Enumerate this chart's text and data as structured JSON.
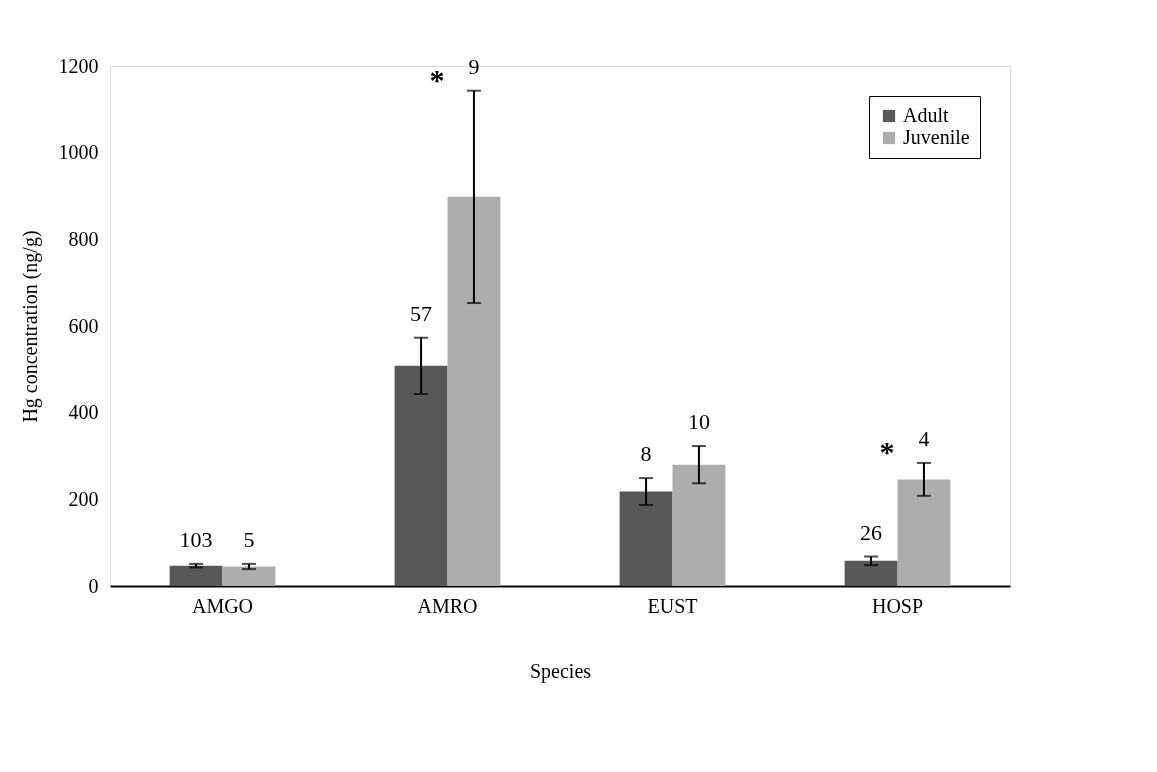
{
  "chart_data": {
    "type": "bar",
    "xlabel": "Species",
    "ylabel": "Hg concentration (ng/g)",
    "categories": [
      "AMGO",
      "AMRO",
      "EUST",
      "HOSP"
    ],
    "series": [
      {
        "name": "Adult",
        "color": "#595758",
        "values": [
          47,
          508,
          218,
          58
        ],
        "errors": [
          4,
          65,
          31,
          10
        ]
      },
      {
        "name": "Juvenile",
        "color": "#afadac",
        "values": [
          45,
          898,
          280,
          246
        ],
        "errors": [
          6,
          245,
          43,
          38
        ]
      }
    ],
    "ylim": [
      0,
      1200
    ],
    "yticks": [
      0,
      200,
      400,
      600,
      800,
      {
        "value": 1000,
        "label": "1000"
      },
      {
        "value": 1200,
        "label": "1200"
      }
    ],
    "grid": false,
    "legend": "top right",
    "annotations": [
      "103",
      "5",
      "57",
      "*",
      "9",
      "8",
      "10",
      "26",
      "*",
      "4"
    ]
  }
}
